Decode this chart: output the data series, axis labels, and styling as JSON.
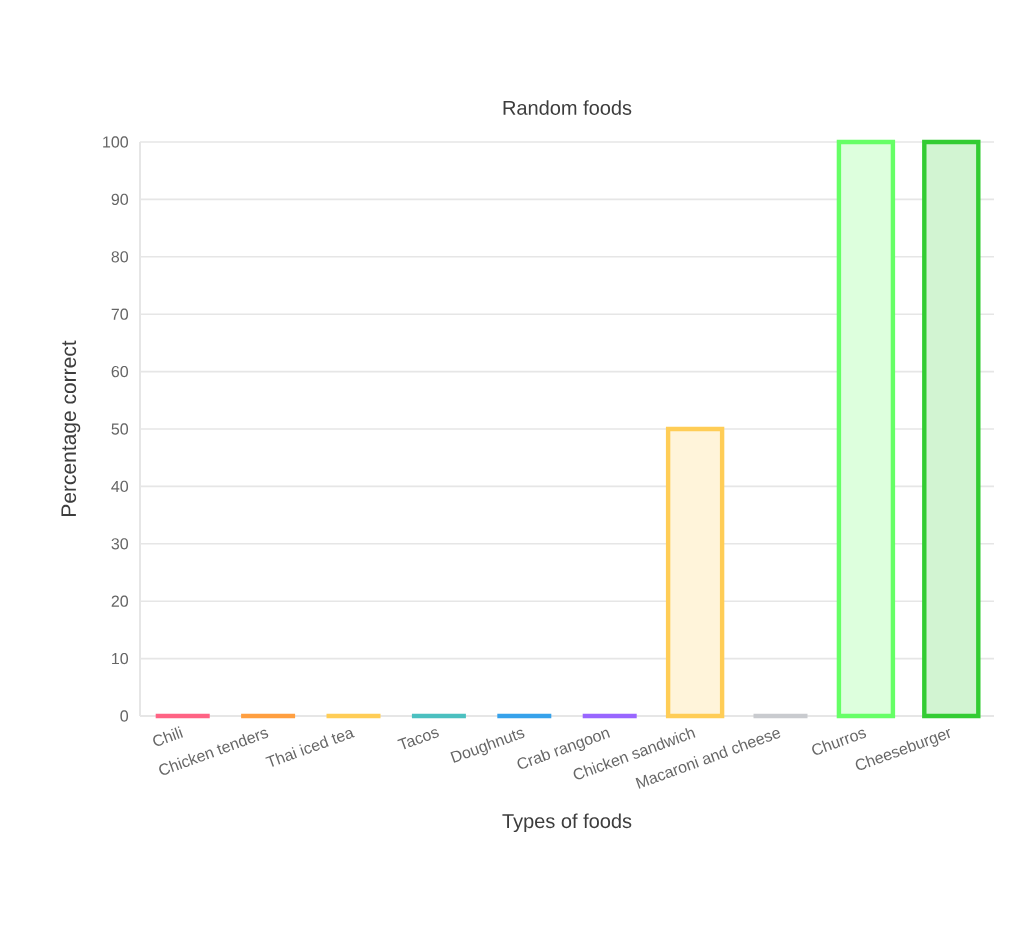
{
  "chart_data": {
    "type": "bar",
    "title": "Random foods",
    "xlabel": "Types of foods",
    "ylabel": "Percentage correct",
    "categories": [
      "Chili",
      "Chicken tenders",
      "Thai iced tea",
      "Tacos",
      "Doughnuts",
      "Crab rangoon",
      "Chicken sandwich",
      "Macaroni and cheese",
      "Churros",
      "Cheeseburger"
    ],
    "values": [
      0,
      0,
      0,
      0,
      0,
      0,
      50,
      0,
      100,
      100
    ],
    "colors": [
      "#ff6384",
      "#ff9f40",
      "#ffcd56",
      "#4bc0c0",
      "#36a2eb",
      "#9966ff",
      "#ffcd56",
      "#c9cbcf",
      "#66ff66",
      "#33cc33"
    ],
    "ylim": [
      0,
      100
    ],
    "yticks": [
      0,
      10,
      20,
      30,
      40,
      50,
      60,
      70,
      80,
      90,
      100
    ],
    "grid": "y"
  }
}
